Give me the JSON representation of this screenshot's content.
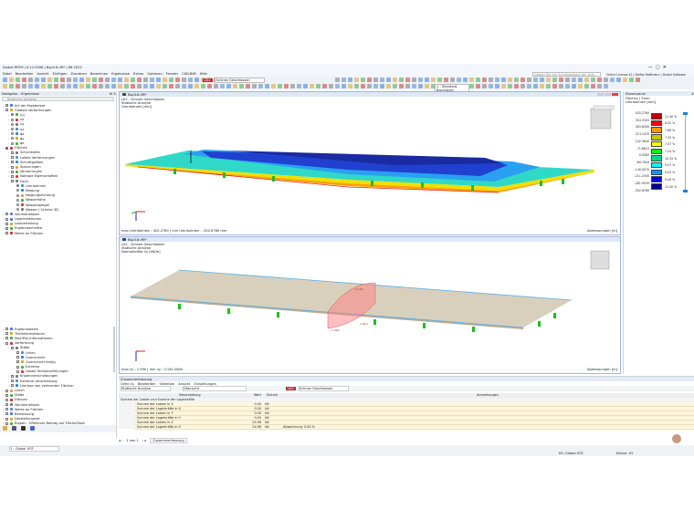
{
  "window": {
    "title": "Dlubal RFEM | 6.12.0008 | Bsp3.6.rf6* | KB 2025",
    "search_placeholder": "Geben Sie ein Schlüsselwort ein (Alt...",
    "license": "Online License 41 | Stefan Hoffmann | Dlubal Software GmbH"
  },
  "menu": [
    "Datei",
    "Bearbeiten",
    "Ansicht",
    "Einfügen",
    "Zuordnen",
    "Berechnen",
    "Ergebnisse",
    "Extras",
    "Optionen",
    "Fenster",
    "CAD-BIM",
    "Hilfe"
  ],
  "toolbar": {
    "load_case_tag": "LK2",
    "load_case": "Schnee Geschlossen",
    "view_combo": "1 - Standard-Bacinlayer"
  },
  "navigator": {
    "title": "Navigator - Ergebnisse",
    "combo": "Statische Analyse",
    "top_items": [
      {
        "label": "Art der Ergebnisse",
        "level": 0,
        "kind": "cb"
      },
      {
        "label": "Globale Verformungen",
        "level": 0,
        "kind": "cb"
      },
      {
        "label": "|u|",
        "level": 1,
        "kind": "rd",
        "checked": true
      },
      {
        "label": "ux",
        "level": 1,
        "kind": "rd"
      },
      {
        "label": "uy",
        "level": 1,
        "kind": "rd"
      },
      {
        "label": "uz",
        "level": 1,
        "kind": "rd"
      },
      {
        "label": "φx",
        "level": 1,
        "kind": "rd"
      },
      {
        "label": "φy",
        "level": 1,
        "kind": "rd"
      },
      {
        "label": "φz",
        "level": 1,
        "kind": "rd"
      },
      {
        "label": "Flächen",
        "level": 0,
        "kind": "cb",
        "checked": true
      },
      {
        "label": "Schichtseite",
        "level": 1,
        "kind": "cb"
      },
      {
        "label": "Lokale Verformungen",
        "level": 1,
        "kind": "cb"
      },
      {
        "label": "Schnittgrößen",
        "level": 1,
        "kind": "cb"
      },
      {
        "label": "Spannungen",
        "level": 1,
        "kind": "cb"
      },
      {
        "label": "Verzerrungen",
        "level": 1,
        "kind": "cb"
      },
      {
        "label": "Isotrope Eigenschaften",
        "level": 1,
        "kind": "cb"
      },
      {
        "label": "Form",
        "level": 1,
        "kind": "cb"
      },
      {
        "label": "Umrisslinien",
        "level": 2,
        "kind": "rd",
        "checked": true
      },
      {
        "label": "Neigung",
        "level": 2,
        "kind": "rd"
      },
      {
        "label": "Neigungsrichtung",
        "level": 2,
        "kind": "rd"
      },
      {
        "label": "Wasserhöhe",
        "level": 2,
        "kind": "rd"
      },
      {
        "label": "Wasserspiegel",
        "level": 2,
        "kind": "rd"
      },
      {
        "label": "Wasser | Schnee 3D",
        "level": 2,
        "kind": "rd"
      },
      {
        "label": "Volumenkörper",
        "level": 0,
        "kind": "cb"
      },
      {
        "label": "Lagerreaktionen",
        "level": 0,
        "kind": "cb"
      },
      {
        "label": "Lastverteilung",
        "level": 0,
        "kind": "cb"
      },
      {
        "label": "Ergebnisschnitte",
        "level": 0,
        "kind": "cb"
      },
      {
        "label": "Werte an Flächen",
        "level": 0,
        "kind": "cb"
      }
    ],
    "bottom_items": [
      {
        "label": "Ergebniswerte",
        "level": 0
      },
      {
        "label": "Titelinformationen",
        "level": 0
      },
      {
        "label": "Max/Min-Informationen",
        "level": 0
      },
      {
        "label": "Verformung",
        "level": 0
      },
      {
        "label": "Stäbe",
        "level": 1
      },
      {
        "label": "Linien",
        "level": 2
      },
      {
        "label": "Querschnitt",
        "level": 2
      },
      {
        "label": "Querschnitt farbig",
        "level": 2
      },
      {
        "label": "Extrema",
        "level": 2
      },
      {
        "label": "Lokale Torsionsdrehungen",
        "level": 2
      },
      {
        "label": "Knotenverschiebungen",
        "level": 1
      },
      {
        "label": "Extreme Verschiebung",
        "level": 1
      },
      {
        "label": "Umrisse von verformten Flächen",
        "level": 1
      },
      {
        "label": "Linien",
        "level": 0
      },
      {
        "label": "Stäbe",
        "level": 0
      },
      {
        "label": "Flächen",
        "level": 0
      },
      {
        "label": "Volumenkörper",
        "level": 0
      },
      {
        "label": "Werte an Flächen",
        "level": 0
      },
      {
        "label": "Bemessung",
        "level": 0
      },
      {
        "label": "Darstellungsart",
        "level": 0
      },
      {
        "label": "Rippen - Effektiver Beitrag auf Fläche/Stab",
        "level": 0
      },
      {
        "label": "Lagerreaktionen",
        "level": 0
      }
    ],
    "coord_system": "1 - Global XYZ"
  },
  "view1": {
    "tab": "Bsp3.6.rf6*",
    "line1": "LK2 - Schnee Geschlossen",
    "line2": "Statische Analyse",
    "line3": "Umrisslinien [mm]",
    "footer": "max Umrisslinien : 425.2760 | min Umrisslinien : -352.6760 mm",
    "dims": "Abmessungen [m]"
  },
  "view2": {
    "tab": "Bsp3.6.rf6*",
    "line1": "LK2 - Schnee Geschlossen",
    "line2": "Statische Analyse",
    "line3": "Normalkräfte ny [kN/m]",
    "footer": "max ny : 1.990 | min ny : 0.162 kN/m",
    "dims": "Abmessungen [m]",
    "labels": [
      "0.162",
      "1.990",
      "1.813"
    ]
  },
  "control_panel": {
    "title": "Steuerpanel",
    "subtitle1": "Flächen | Form",
    "subtitle2": "Umrisslinien [mm]",
    "values": [
      "425.2760",
      "354.3320",
      "283.8300",
      "213.1070",
      "142.3840",
      "71.6613",
      "0.9383",
      "-69.7844",
      "-140.5070",
      "-211.2300",
      "-281.9530",
      "-352.6760"
    ],
    "colors": [
      "#c00000",
      "#ff0000",
      "#ff9900",
      "#c8c800",
      "#ffff00",
      "#00ff00",
      "#00d890",
      "#00ffff",
      "#0099ff",
      "#0000ff",
      "#000090"
    ],
    "percents": [
      "11.40 %",
      "8.92 %",
      "7.86 %",
      "7.32 %",
      "7.07 %",
      "7.24 %",
      "10.32 %",
      "9.07 %",
      "9.02 %",
      "9.49 %",
      "12.00 %"
    ]
  },
  "summary": {
    "title": "Zusammenfassung",
    "menu": [
      "Gehe zu",
      "Bearbeiten",
      "Selektion",
      "Ansicht",
      "Einstellungen"
    ],
    "combo1": "Statische Analyse",
    "combo2": "Übersicht",
    "lc_tag": "LK2",
    "lc": "Schnee Geschlossen",
    "headers": [
      "Beschreibung",
      "Wert",
      "Einheit",
      "Anmerkungen"
    ],
    "group": "Summe der Lasten und Summe der Lagerkräfte",
    "rows": [
      {
        "desc": "Summe der Lasten in X",
        "value": "0.00",
        "unit": "kN",
        "note": ""
      },
      {
        "desc": "Summe der Lagerkräfte in X",
        "value": "0.00",
        "unit": "kN",
        "note": ""
      },
      {
        "desc": "Summe der Lasten in Y",
        "value": "0.00",
        "unit": "kN",
        "note": ""
      },
      {
        "desc": "Summe der Lagerkräfte in Y",
        "value": "0.00",
        "unit": "kN",
        "note": ""
      },
      {
        "desc": "Summe der Lasten in Z",
        "value": "24.96",
        "unit": "kN",
        "note": ""
      },
      {
        "desc": "Summe der Lagerkräfte in Z",
        "value": "24.96",
        "unit": "kN",
        "note": "Abweichung: 0.00 %"
      }
    ],
    "pager": "1 von 1",
    "sheet_tab": "Zusammenfassung"
  },
  "status": {
    "cs": "KS: Global XYZ",
    "plane": "Ebene: XY"
  }
}
